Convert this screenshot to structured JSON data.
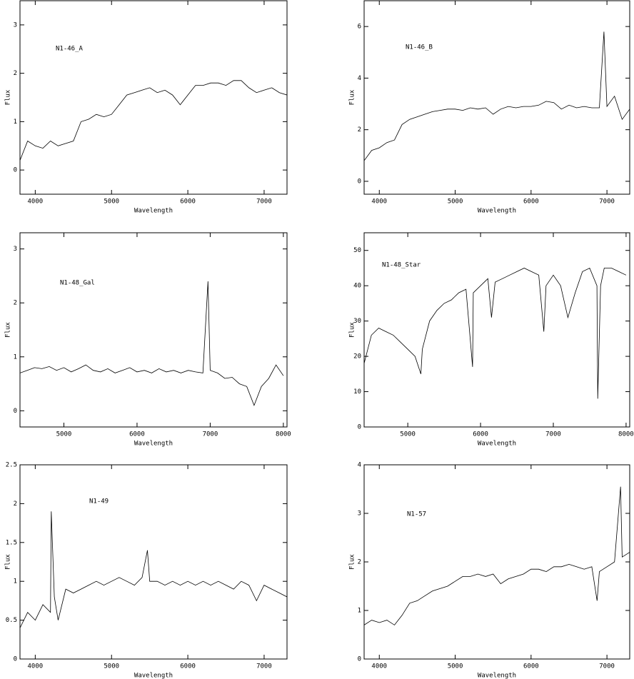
{
  "chart_data": [
    {
      "type": "line",
      "annotation": "N1-46_A",
      "xlabel": "Wavelength",
      "ylabel": "Flux",
      "color": "#000000",
      "xlim": [
        3800,
        7300
      ],
      "ylim": [
        -0.5,
        3.5
      ],
      "xticks": [
        4000,
        5000,
        6000,
        7000
      ],
      "yticks": [
        0,
        1,
        2,
        3
      ],
      "x": [
        3800,
        3900,
        4000,
        4100,
        4200,
        4300,
        4400,
        4500,
        4600,
        4700,
        4800,
        4900,
        5000,
        5100,
        5200,
        5300,
        5400,
        5500,
        5600,
        5700,
        5800,
        5900,
        6000,
        6100,
        6200,
        6300,
        6400,
        6500,
        6600,
        6700,
        6800,
        6900,
        7000,
        7100,
        7200,
        7300
      ],
      "values": [
        0.2,
        0.6,
        0.5,
        0.45,
        0.6,
        0.5,
        0.55,
        0.6,
        1.0,
        1.05,
        1.15,
        1.1,
        1.15,
        1.35,
        1.55,
        1.6,
        1.65,
        1.7,
        1.6,
        1.65,
        1.55,
        1.35,
        1.55,
        1.75,
        1.75,
        1.8,
        1.8,
        1.75,
        1.85,
        1.85,
        1.7,
        1.6,
        1.65,
        1.7,
        1.6,
        1.55
      ]
    },
    {
      "type": "line",
      "annotation": "N1-46_B",
      "xlabel": "Wavelength",
      "ylabel": "Flux",
      "color": "#000000",
      "xlim": [
        3800,
        7300
      ],
      "ylim": [
        -0.5,
        7
      ],
      "xticks": [
        4000,
        5000,
        6000,
        7000
      ],
      "yticks": [
        0,
        2,
        4,
        6
      ],
      "x": [
        3800,
        3900,
        4000,
        4100,
        4200,
        4300,
        4400,
        4500,
        4600,
        4700,
        4800,
        4900,
        5000,
        5100,
        5200,
        5300,
        5400,
        5500,
        5600,
        5700,
        5800,
        5900,
        6000,
        6100,
        6200,
        6300,
        6400,
        6500,
        6600,
        6700,
        6800,
        6900,
        6960,
        7000,
        7100,
        7200,
        7300
      ],
      "values": [
        0.8,
        1.2,
        1.3,
        1.5,
        1.6,
        2.2,
        2.4,
        2.5,
        2.6,
        2.7,
        2.75,
        2.8,
        2.8,
        2.75,
        2.85,
        2.8,
        2.85,
        2.6,
        2.8,
        2.9,
        2.85,
        2.9,
        2.9,
        2.95,
        3.1,
        3.05,
        2.8,
        2.95,
        2.85,
        2.9,
        2.85,
        2.85,
        5.8,
        2.9,
        3.3,
        2.4,
        2.8
      ]
    },
    {
      "type": "line",
      "annotation": "N1-48_Gal",
      "xlabel": "Wavelength",
      "ylabel": "Flux",
      "color": "#000000",
      "xlim": [
        4400,
        8050
      ],
      "ylim": [
        -0.3,
        3.3
      ],
      "xticks": [
        5000,
        6000,
        7000,
        8000
      ],
      "yticks": [
        0,
        1,
        2,
        3
      ],
      "x": [
        4400,
        4500,
        4600,
        4700,
        4800,
        4900,
        5000,
        5100,
        5200,
        5300,
        5400,
        5500,
        5600,
        5700,
        5800,
        5900,
        6000,
        6100,
        6200,
        6300,
        6400,
        6500,
        6600,
        6700,
        6800,
        6900,
        6970,
        7000,
        7100,
        7200,
        7300,
        7400,
        7500,
        7600,
        7700,
        7800,
        7900,
        8000
      ],
      "values": [
        0.7,
        0.75,
        0.8,
        0.78,
        0.82,
        0.75,
        0.8,
        0.72,
        0.78,
        0.85,
        0.75,
        0.72,
        0.78,
        0.7,
        0.75,
        0.8,
        0.72,
        0.75,
        0.7,
        0.78,
        0.72,
        0.75,
        0.7,
        0.75,
        0.72,
        0.7,
        2.4,
        0.75,
        0.7,
        0.6,
        0.62,
        0.5,
        0.45,
        0.1,
        0.45,
        0.6,
        0.85,
        0.65
      ]
    },
    {
      "type": "line",
      "annotation": "N1-48_Star",
      "xlabel": "Wavelength",
      "ylabel": "Flux",
      "color": "#000000",
      "xlim": [
        4400,
        8050
      ],
      "ylim": [
        0,
        55
      ],
      "xticks": [
        5000,
        6000,
        7000,
        8000
      ],
      "yticks": [
        0,
        10,
        20,
        30,
        40,
        50
      ],
      "x": [
        4400,
        4500,
        4600,
        4700,
        4800,
        4900,
        5000,
        5100,
        5180,
        5200,
        5300,
        5400,
        5500,
        5600,
        5700,
        5800,
        5890,
        5900,
        6000,
        6100,
        6150,
        6200,
        6300,
        6400,
        6500,
        6600,
        6700,
        6800,
        6870,
        6900,
        7000,
        7100,
        7200,
        7300,
        7400,
        7500,
        7600,
        7610,
        7650,
        7700,
        7800,
        7900,
        8000
      ],
      "values": [
        18,
        26,
        28,
        27,
        26,
        24,
        22,
        20,
        15,
        22,
        30,
        33,
        35,
        36,
        38,
        39,
        17,
        38,
        40,
        42,
        31,
        41,
        42,
        43,
        44,
        45,
        44,
        43,
        27,
        40,
        43,
        40,
        31,
        38,
        44,
        45,
        40,
        8,
        40,
        45,
        45,
        44,
        43
      ]
    },
    {
      "type": "line",
      "annotation": "N1-49",
      "xlabel": "Wavelength",
      "ylabel": "Flux",
      "color": "#000000",
      "xlim": [
        3800,
        7300
      ],
      "ylim": [
        0,
        2.5
      ],
      "xticks": [
        4000,
        5000,
        6000,
        7000
      ],
      "yticks": [
        0,
        0.5,
        1,
        1.5,
        2,
        2.5
      ],
      "x": [
        3800,
        3900,
        4000,
        4100,
        4200,
        4210,
        4250,
        4300,
        4400,
        4500,
        4600,
        4700,
        4800,
        4900,
        5000,
        5100,
        5200,
        5300,
        5400,
        5470,
        5500,
        5600,
        5700,
        5800,
        5900,
        6000,
        6100,
        6200,
        6300,
        6400,
        6500,
        6600,
        6700,
        6800,
        6900,
        7000,
        7100,
        7200,
        7300
      ],
      "values": [
        0.4,
        0.6,
        0.5,
        0.7,
        0.6,
        1.9,
        0.8,
        0.5,
        0.9,
        0.85,
        0.9,
        0.95,
        1.0,
        0.95,
        1.0,
        1.05,
        1.0,
        0.95,
        1.05,
        1.4,
        1.0,
        1.0,
        0.95,
        1.0,
        0.95,
        1.0,
        0.95,
        1.0,
        0.95,
        1.0,
        0.95,
        0.9,
        1.0,
        0.95,
        0.75,
        0.95,
        0.9,
        0.85,
        0.8
      ]
    },
    {
      "type": "line",
      "annotation": "N1-57",
      "xlabel": "Wavelength",
      "ylabel": "Flux",
      "color": "#000000",
      "xlim": [
        3800,
        7300
      ],
      "ylim": [
        0,
        4
      ],
      "xticks": [
        4000,
        5000,
        6000,
        7000
      ],
      "yticks": [
        0,
        1,
        2,
        3,
        4
      ],
      "x": [
        3800,
        3900,
        4000,
        4100,
        4200,
        4300,
        4400,
        4500,
        4600,
        4700,
        4800,
        4900,
        5000,
        5100,
        5200,
        5300,
        5400,
        5500,
        5600,
        5700,
        5800,
        5900,
        6000,
        6100,
        6200,
        6300,
        6400,
        6500,
        6600,
        6700,
        6800,
        6870,
        6900,
        7000,
        7100,
        7180,
        7200,
        7300
      ],
      "values": [
        0.7,
        0.8,
        0.75,
        0.8,
        0.7,
        0.9,
        1.15,
        1.2,
        1.3,
        1.4,
        1.45,
        1.5,
        1.6,
        1.7,
        1.7,
        1.75,
        1.7,
        1.75,
        1.55,
        1.65,
        1.7,
        1.75,
        1.85,
        1.85,
        1.8,
        1.9,
        1.9,
        1.95,
        1.9,
        1.85,
        1.9,
        1.2,
        1.8,
        1.9,
        2.0,
        3.55,
        2.1,
        2.2
      ]
    }
  ]
}
